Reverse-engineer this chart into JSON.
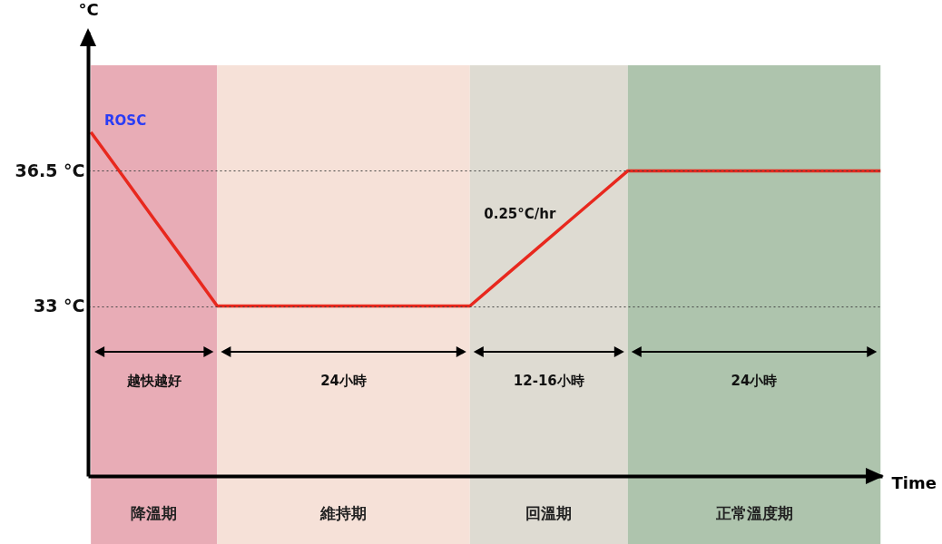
{
  "chart_data": {
    "type": "line",
    "xlabel": "Time",
    "ylabel": "°C",
    "categories": [
      null,
      null,
      null,
      null,
      null,
      null,
      null,
      null,
      null,
      null,
      null,
      null,
      null,
      null,
      null,
      null,
      null,
      null,
      null,
      null,
      null,
      null,
      null,
      null,
      null,
      null
    ],
    "series": [
      {
        "color": "#e8281e",
        "values": [
          37.5,
          36.38,
          35.25,
          34.13,
          33,
          33,
          33,
          33,
          33,
          33,
          33,
          33,
          33,
          33.7,
          34.4,
          35.1,
          35.8,
          36.5,
          36.5,
          36.5,
          36.5,
          36.5,
          36.5,
          36.5,
          36.5,
          36.5
        ]
      }
    ],
    "ylim": [
      28.6,
      40.1
    ],
    "yticks": [
      {
        "value": 33,
        "label": "33 °C"
      },
      {
        "value": 36.5,
        "label": "36.5 °C"
      }
    ],
    "tick_labels": "y",
    "grid": "y",
    "line_style": "solid",
    "annotations": [
      "ROSC",
      "0.25°C/hr",
      "越快越好",
      "24小時",
      "12-16小時",
      "24小時",
      "降溫期",
      "維持期",
      "回溫期",
      "正常溫度期"
    ]
  }
}
